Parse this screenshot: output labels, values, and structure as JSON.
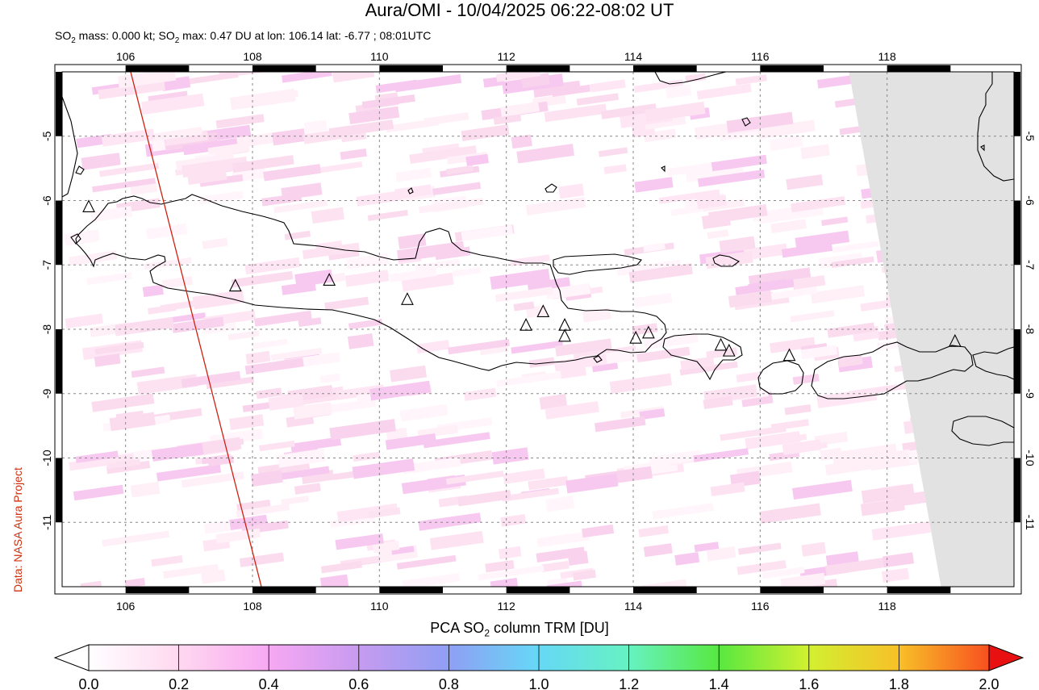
{
  "header": {
    "title": "Aura/OMI - 10/04/2025 06:22-08:02 UT",
    "subtitle_prefix": "SO",
    "subtitle_sub1": "2",
    "subtitle_mid": " mass: 0.000 kt; SO",
    "subtitle_sub2": "2",
    "subtitle_rest": " max: 0.47 DU at lon: 106.14 lat: -6.77 ; 08:01UTC"
  },
  "credit": "Data: NASA Aura Project",
  "map": {
    "lon_range": [
      105,
      120
    ],
    "lat_range": [
      -12,
      -4
    ],
    "lon_ticks": [
      106,
      108,
      110,
      112,
      114,
      116,
      118
    ],
    "lat_ticks": [
      -5,
      -6,
      -7,
      -8,
      -9,
      -10,
      -11
    ],
    "lon_labels": [
      "106",
      "108",
      "110",
      "112",
      "114",
      "116",
      "118"
    ],
    "lat_labels": [
      "-5",
      "-6",
      "-7",
      "-8",
      "-9",
      "-10",
      "-11"
    ],
    "grid": true,
    "volcanoes": [
      {
        "lon": 105.42,
        "lat": -6.1
      },
      {
        "lon": 107.73,
        "lat": -7.33
      },
      {
        "lon": 109.21,
        "lat": -7.24
      },
      {
        "lon": 110.44,
        "lat": -7.54
      },
      {
        "lon": 112.31,
        "lat": -7.94
      },
      {
        "lon": 112.58,
        "lat": -7.73
      },
      {
        "lon": 112.92,
        "lat": -7.94
      },
      {
        "lon": 112.92,
        "lat": -8.11
      },
      {
        "lon": 114.04,
        "lat": -8.14
      },
      {
        "lon": 114.24,
        "lat": -8.06
      },
      {
        "lon": 115.38,
        "lat": -8.25
      },
      {
        "lon": 115.51,
        "lat": -8.34
      },
      {
        "lon": 116.46,
        "lat": -8.41
      },
      {
        "lon": 119.07,
        "lat": -8.19
      }
    ],
    "swath_edge": [
      {
        "lon": 106.08,
        "lat": -4.0
      },
      {
        "lon": 108.14,
        "lat": -12.0
      }
    ],
    "no_data_region": [
      {
        "lon": 117.4,
        "lat": -4.0
      },
      {
        "lon": 120.0,
        "lat": -4.0
      },
      {
        "lon": 120.0,
        "lat": -12.0
      },
      {
        "lon": 118.85,
        "lat": -12.0
      }
    ],
    "colors": {
      "coast": "#000000",
      "grid": "#888888",
      "swath": "#cc2211",
      "nodata": "#e2e2e2"
    }
  },
  "colorbar": {
    "title_prefix": "PCA SO",
    "title_sub": "2",
    "title_rest": " column TRM [DU]",
    "min": 0.0,
    "max": 2.0,
    "tick_labels": [
      "0.0",
      "0.2",
      "0.4",
      "0.6",
      "0.8",
      "1.0",
      "1.2",
      "1.4",
      "1.6",
      "1.8",
      "2.0"
    ],
    "colors": [
      "#ffffff",
      "#ffd8f0",
      "#f7a8f2",
      "#c79bf0",
      "#8f9ff4",
      "#66d8f6",
      "#66f2c2",
      "#58e840",
      "#d2f030",
      "#f8c028",
      "#f85020",
      "#e81010"
    ]
  }
}
